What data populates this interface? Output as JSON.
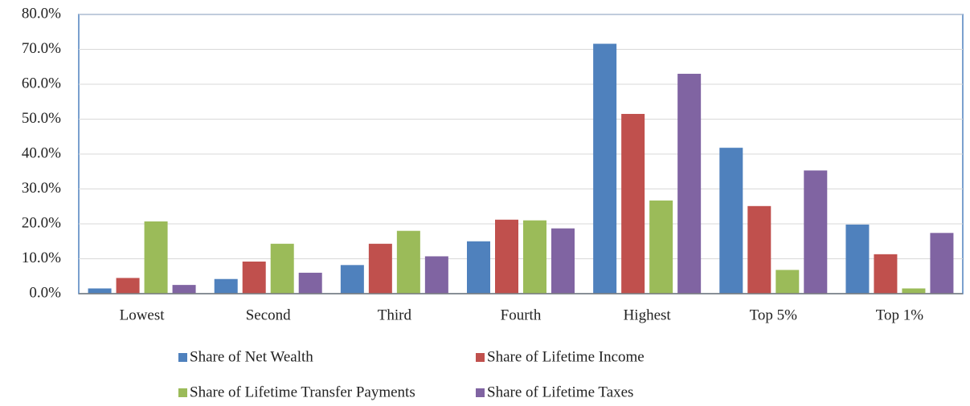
{
  "chart_data": {
    "type": "bar",
    "categories": [
      "Lowest",
      "Second",
      "Third",
      "Fourth",
      "Highest",
      "Top 5%",
      "Top 1%"
    ],
    "series": [
      {
        "name": "Share of Net Wealth",
        "color": "#4f81bd",
        "values": [
          1.5,
          4.2,
          8.2,
          15.0,
          71.6,
          41.8,
          19.8
        ]
      },
      {
        "name": "Share of Lifetime Income",
        "color": "#c0504d",
        "values": [
          4.5,
          9.2,
          14.3,
          21.2,
          51.5,
          25.1,
          11.3
        ]
      },
      {
        "name": "Share of Lifetime Transfer Payments",
        "color": "#9bbb59",
        "values": [
          20.7,
          14.3,
          18.0,
          21.0,
          26.7,
          6.8,
          1.5
        ]
      },
      {
        "name": "Share of Lifetime Taxes",
        "color": "#8064a2",
        "values": [
          2.5,
          6.0,
          10.7,
          18.7,
          63.0,
          35.3,
          17.4
        ]
      }
    ],
    "ylim": [
      0,
      80
    ],
    "yticks": [
      {
        "value": 0,
        "label": "0.0%"
      },
      {
        "value": 10,
        "label": "10.0%"
      },
      {
        "value": 20,
        "label": "20.0%"
      },
      {
        "value": 30,
        "label": "30.0%"
      },
      {
        "value": 40,
        "label": "40.0%"
      },
      {
        "value": 50,
        "label": "50.0%"
      },
      {
        "value": 60,
        "label": "60.0%"
      },
      {
        "value": 70,
        "label": "70.0%"
      },
      {
        "value": 80,
        "label": "80.0%"
      }
    ],
    "grid": true,
    "legend": "bottom"
  }
}
